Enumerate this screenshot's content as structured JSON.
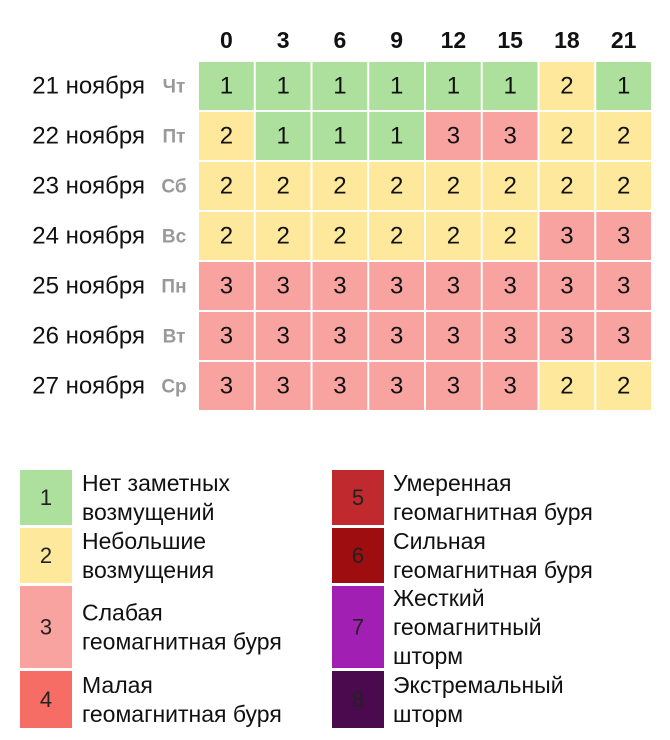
{
  "table": {
    "columns": [
      0,
      3,
      6,
      9,
      12,
      15,
      18,
      21
    ],
    "rows": [
      {
        "date": "21 ноября",
        "day": "Чт",
        "values": [
          1,
          1,
          1,
          1,
          1,
          1,
          2,
          1
        ]
      },
      {
        "date": "22 ноября",
        "day": "Пт",
        "values": [
          2,
          1,
          1,
          1,
          3,
          3,
          2,
          2
        ]
      },
      {
        "date": "23 ноября",
        "day": "Сб",
        "values": [
          2,
          2,
          2,
          2,
          2,
          2,
          2,
          2
        ]
      },
      {
        "date": "24 ноября",
        "day": "Вс",
        "values": [
          2,
          2,
          2,
          2,
          2,
          2,
          3,
          3
        ]
      },
      {
        "date": "25 ноября",
        "day": "Пн",
        "values": [
          3,
          3,
          3,
          3,
          3,
          3,
          3,
          3
        ]
      },
      {
        "date": "26 ноября",
        "day": "Вт",
        "values": [
          3,
          3,
          3,
          3,
          3,
          3,
          3,
          3
        ]
      },
      {
        "date": "27 ноября",
        "day": "Ср",
        "values": [
          3,
          3,
          3,
          3,
          3,
          3,
          2,
          2
        ]
      }
    ]
  },
  "legend": [
    {
      "value": 1,
      "color": "#ace09c",
      "label": [
        "Нет заметных",
        "возмущений"
      ]
    },
    {
      "value": 2,
      "color": "#fde89c",
      "label": [
        "Небольшие",
        "возмущения"
      ]
    },
    {
      "value": 3,
      "color": "#f8a3a0",
      "label": [
        "Слабая",
        "геомагнитная буря"
      ]
    },
    {
      "value": 4,
      "color": "#f56d64",
      "label": [
        "Малая",
        "геомагнитная буря"
      ]
    },
    {
      "value": 5,
      "color": "#c02a2e",
      "label": [
        "Умеренная",
        "геомагнитная буря"
      ]
    },
    {
      "value": 6,
      "color": "#9e0d10",
      "label": [
        "Сильная",
        "геомагнитная буря"
      ]
    },
    {
      "value": 7,
      "color": "#a11fb3",
      "label": [
        "Жесткий",
        "геомагнитный",
        "шторм"
      ]
    },
    {
      "value": 8,
      "color": "#4a0a4d",
      "label": [
        "Экстремальный",
        "шторм"
      ]
    }
  ]
}
